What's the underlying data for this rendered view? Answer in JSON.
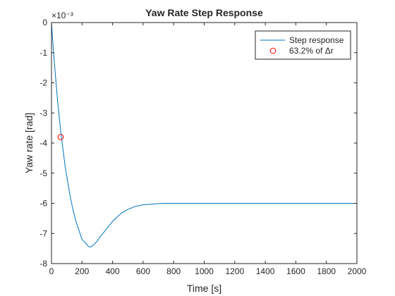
{
  "chart_data": {
    "type": "line",
    "title": "Yaw Rate Step Response",
    "xlabel": "Time [s]",
    "ylabel": "Yaw rate [rad]",
    "exponent_label": "×10⁻³",
    "xlim": [
      0,
      2000
    ],
    "ylim": [
      -0.008,
      0
    ],
    "xticks": [
      0,
      200,
      400,
      600,
      800,
      1000,
      1200,
      1400,
      1600,
      1800,
      2000
    ],
    "xtick_labels": [
      "0",
      "200",
      "400",
      "600",
      "800",
      "1000",
      "1200",
      "1400",
      "1600",
      "1800",
      "2000"
    ],
    "yticks": [
      0,
      -0.001,
      -0.002,
      -0.003,
      -0.004,
      -0.005,
      -0.006,
      -0.007,
      -0.008
    ],
    "ytick_labels": [
      "0",
      "-1",
      "-2",
      "-3",
      "-4",
      "-5",
      "-6",
      "-7",
      "-8"
    ],
    "grid": true,
    "legend_position": "top-right",
    "series": [
      {
        "name": "Step response",
        "kind": "line",
        "color": "#0072BD",
        "x": [
          0,
          10,
          20,
          30,
          40,
          50,
          60,
          70,
          80,
          90,
          100,
          120,
          140,
          160,
          180,
          200,
          220,
          240,
          250,
          260,
          280,
          300,
          320,
          340,
          360,
          380,
          400,
          430,
          460,
          500,
          550,
          600,
          650,
          700,
          750,
          800,
          900,
          1000,
          1100,
          1200,
          1300,
          1400,
          1500,
          1600,
          1700,
          1800,
          1900,
          2000
        ],
        "y": [
          0,
          -0.00075,
          -0.0014,
          -0.002,
          -0.0026,
          -0.0031,
          -0.0036,
          -0.004,
          -0.0044,
          -0.0048,
          -0.0051,
          -0.0057,
          -0.0062,
          -0.0066,
          -0.0069,
          -0.0072,
          -0.0073,
          -0.00742,
          -0.00745,
          -0.00744,
          -0.00736,
          -0.00725,
          -0.0071,
          -0.00698,
          -0.00685,
          -0.00672,
          -0.0066,
          -0.00645,
          -0.00632,
          -0.0062,
          -0.0061,
          -0.00605,
          -0.00603,
          -0.00601,
          -0.006,
          -0.006,
          -0.006,
          -0.006,
          -0.006,
          -0.006,
          -0.006,
          -0.006,
          -0.006,
          -0.006,
          -0.006,
          -0.006,
          -0.006,
          -0.006
        ]
      },
      {
        "name": "63.2% of Δr",
        "kind": "marker",
        "color": "#FF0000",
        "x": [
          60
        ],
        "y": [
          -0.0038
        ]
      }
    ]
  }
}
